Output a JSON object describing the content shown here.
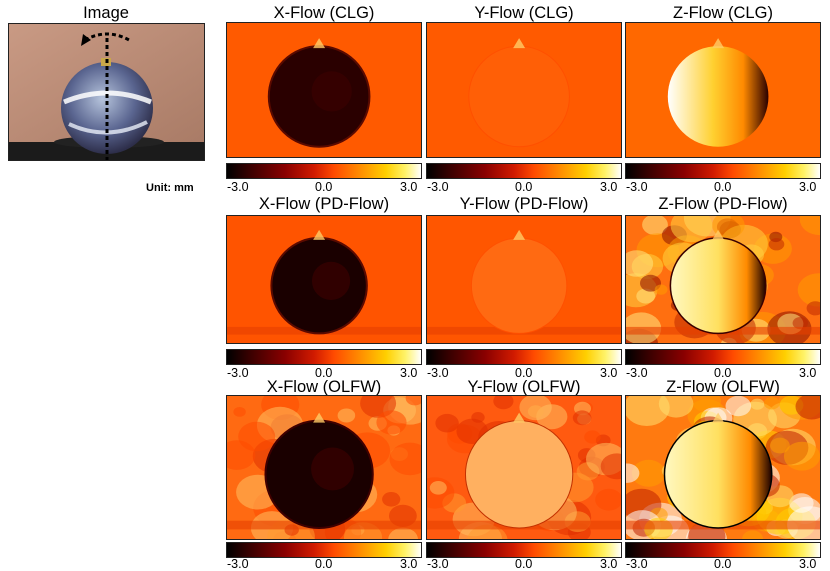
{
  "image_title": "Image",
  "unit_label": "Unit: mm",
  "colorbar": {
    "min_label": "-3.0",
    "mid_label": "0.0",
    "max_label": "3.0"
  },
  "panels": [
    {
      "title": "X-Flow (CLG)"
    },
    {
      "title": "Y-Flow (CLG)"
    },
    {
      "title": "Z-Flow (CLG)"
    },
    {
      "title": "X-Flow (PD-Flow)"
    },
    {
      "title": "Y-Flow (PD-Flow)"
    },
    {
      "title": "Z-Flow (PD-Flow)"
    },
    {
      "title": "X-Flow (OLFW)"
    },
    {
      "title": "Y-Flow (OLFW)"
    },
    {
      "title": "Z-Flow (OLFW)"
    }
  ],
  "colors": {
    "background_orange": "#ff5a00",
    "dark_red": "#3a0000",
    "black": "#000000",
    "yellow": "#ffee55",
    "white": "#ffffff"
  }
}
